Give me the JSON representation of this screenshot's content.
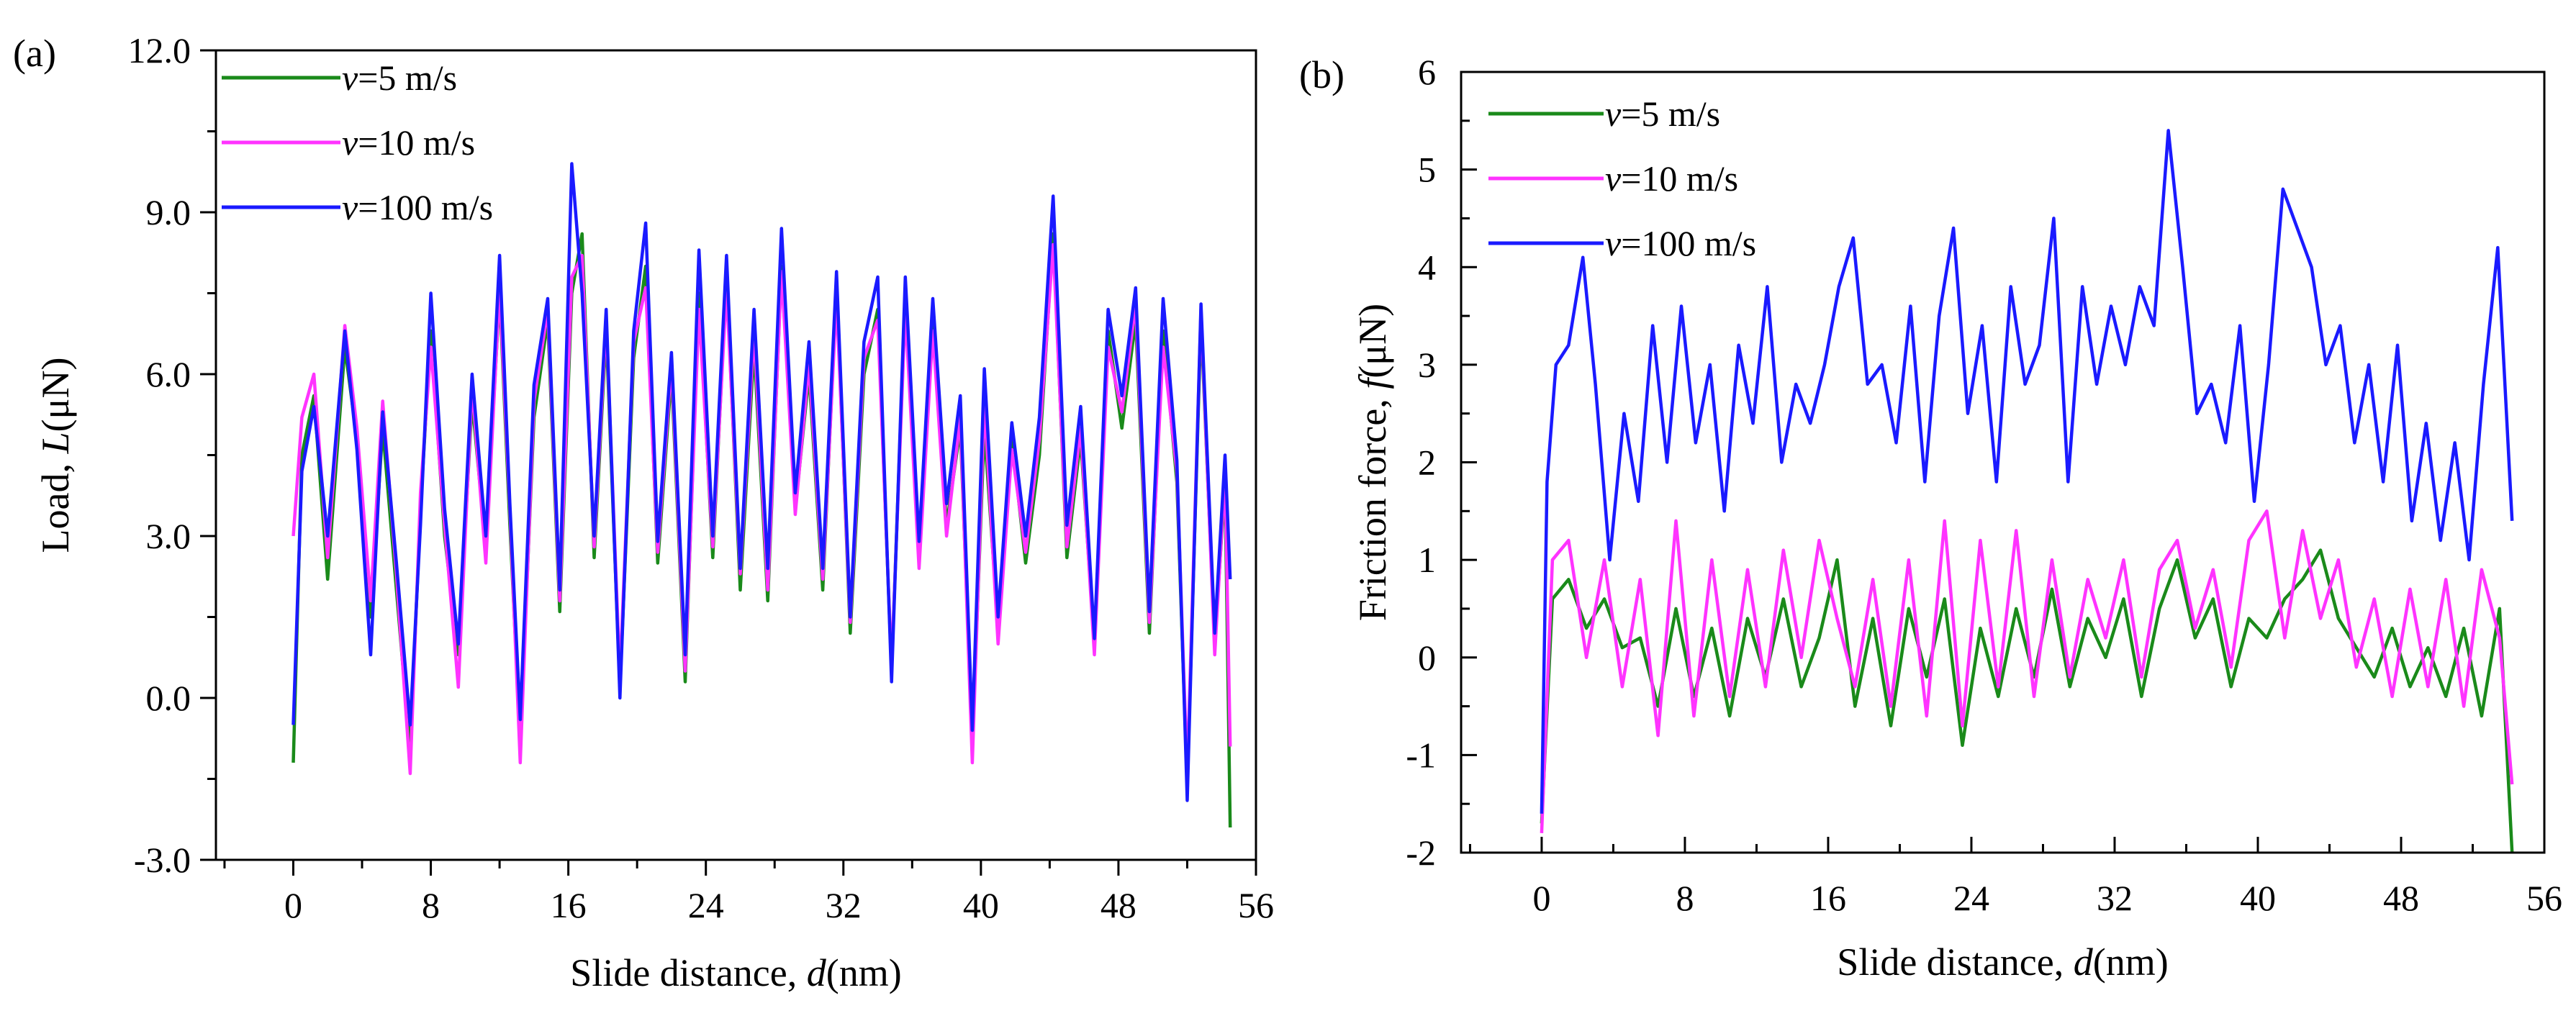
{
  "chart_data": [
    {
      "panel_label": "(a)",
      "type": "line",
      "xlabel_main": "Slide distance, ",
      "xlabel_var": "d",
      "xlabel_unit": "(nm)",
      "ylabel_main": "Load, ",
      "ylabel_var": "L",
      "ylabel_unit": "(μN)",
      "xlim": [
        -4.5,
        56
      ],
      "ylim": [
        -3,
        12
      ],
      "x_ticks": [
        0,
        8,
        16,
        24,
        32,
        40,
        48,
        56
      ],
      "x_tick_labels": [
        "0",
        "8",
        "16",
        "24",
        "32",
        "40",
        "48",
        "56"
      ],
      "y_ticks": [
        -3,
        0,
        3,
        6,
        9,
        12
      ],
      "y_tick_labels": [
        "-3.0",
        "0.0",
        "3.0",
        "6.0",
        "9.0",
        "12.0"
      ],
      "legend_position": "top-left",
      "series": [
        {
          "name_var": "v",
          "name_rest": "=5 m/s",
          "color": "#1a8a1a",
          "x": [
            0,
            0.5,
            1.2,
            2,
            3,
            3.7,
            4.5,
            5.2,
            6,
            6.8,
            7.4,
            8,
            8.8,
            9.6,
            10.4,
            11.2,
            12,
            12.6,
            13.2,
            14,
            14.8,
            15.5,
            16.2,
            16.8,
            17.5,
            18.2,
            19,
            19.8,
            20.5,
            21.2,
            22,
            22.8,
            23.6,
            24.4,
            25.2,
            26,
            26.8,
            27.6,
            28.4,
            29.2,
            30,
            30.8,
            31.6,
            32.4,
            33.2,
            34,
            34.8,
            35.6,
            36.4,
            37.2,
            38,
            38.8,
            39.5,
            40.2,
            41,
            41.8,
            42.6,
            43.4,
            44.2,
            45,
            45.8,
            46.6,
            47.4,
            48.2,
            49,
            49.8,
            50.6,
            51.4,
            52,
            52.8,
            53.6,
            54.2,
            54.5
          ],
          "y": [
            -1.2,
            4.5,
            5.6,
            2.2,
            6.5,
            4.8,
            1.5,
            5.0,
            2.0,
            -1.0,
            3.5,
            6.8,
            3.0,
            0.8,
            5.5,
            2.8,
            7.5,
            3.2,
            -0.8,
            5.2,
            7.0,
            1.6,
            7.5,
            8.6,
            2.6,
            6.8,
            0.2,
            6.3,
            8.0,
            2.5,
            6.0,
            0.3,
            7.5,
            2.6,
            7.8,
            2.0,
            6.5,
            1.8,
            8.0,
            3.5,
            6.0,
            2.0,
            7.6,
            1.2,
            6.0,
            7.2,
            0.5,
            7.5,
            2.6,
            7.0,
            3.2,
            5.0,
            -0.8,
            5.0,
            1.3,
            4.8,
            2.5,
            4.5,
            8.6,
            2.6,
            4.8,
            1.0,
            6.8,
            5.0,
            7.0,
            1.2,
            6.8,
            4.0,
            -1.6,
            7.0,
            1.0,
            4.0,
            -2.4
          ]
        },
        {
          "name_var": "v",
          "name_rest": "=10 m/s",
          "color": "#ff33ff",
          "x": [
            0,
            0.5,
            1.2,
            2,
            3,
            3.7,
            4.5,
            5.2,
            6,
            6.8,
            7.4,
            8,
            8.8,
            9.6,
            10.4,
            11.2,
            12,
            12.6,
            13.2,
            14,
            14.8,
            15.5,
            16.2,
            16.8,
            17.5,
            18.2,
            19,
            19.8,
            20.5,
            21.2,
            22,
            22.8,
            23.6,
            24.4,
            25.2,
            26,
            26.8,
            27.6,
            28.4,
            29.2,
            30,
            30.8,
            31.6,
            32.4,
            33.2,
            34,
            34.8,
            35.6,
            36.4,
            37.2,
            38,
            38.8,
            39.5,
            40.2,
            41,
            41.8,
            42.6,
            43.4,
            44.2,
            45,
            45.8,
            46.6,
            47.4,
            48.2,
            49,
            49.8,
            50.6,
            51.4,
            52,
            52.8,
            53.6,
            54.2,
            54.5
          ],
          "y": [
            3.0,
            5.2,
            6.0,
            2.6,
            6.9,
            5.0,
            1.8,
            5.5,
            2.3,
            -1.4,
            3.8,
            6.5,
            3.2,
            0.2,
            5.8,
            2.5,
            7.6,
            3.5,
            -1.2,
            5.5,
            7.2,
            1.8,
            7.8,
            8.2,
            2.8,
            7.0,
            0.4,
            6.6,
            7.6,
            2.7,
            6.2,
            0.5,
            7.2,
            2.8,
            7.6,
            2.3,
            6.8,
            2.0,
            7.9,
            3.4,
            6.2,
            2.2,
            7.4,
            1.4,
            6.3,
            7.0,
            0.6,
            7.2,
            2.4,
            6.8,
            3.0,
            5.2,
            -1.2,
            5.5,
            1.0,
            4.6,
            2.7,
            4.8,
            8.4,
            2.8,
            5.0,
            0.8,
            6.5,
            5.3,
            7.3,
            1.4,
            6.5,
            4.2,
            -1.4,
            7.2,
            0.8,
            4.2,
            -0.9
          ]
        },
        {
          "name_var": "v",
          "name_rest": "=100 m/s",
          "color": "#1a1aff",
          "x": [
            0,
            0.5,
            1.2,
            2,
            3,
            3.7,
            4.5,
            5.2,
            6,
            6.8,
            7.4,
            8,
            8.8,
            9.6,
            10.4,
            11.2,
            12,
            12.6,
            13.2,
            14,
            14.8,
            15.5,
            16.2,
            16.8,
            17.5,
            18.2,
            19,
            19.8,
            20.5,
            21.2,
            22,
            22.8,
            23.6,
            24.4,
            25.2,
            26,
            26.8,
            27.6,
            28.4,
            29.2,
            30,
            30.8,
            31.6,
            32.4,
            33.2,
            34,
            34.8,
            35.6,
            36.4,
            37.2,
            38,
            38.8,
            39.5,
            40.2,
            41,
            41.8,
            42.6,
            43.4,
            44.2,
            45,
            45.8,
            46.6,
            47.4,
            48.2,
            49,
            49.8,
            50.6,
            51.4,
            52,
            52.8,
            53.6,
            54.2,
            54.5
          ],
          "y": [
            -0.5,
            4.2,
            5.4,
            3.0,
            6.8,
            4.6,
            0.8,
            5.3,
            2.5,
            -0.5,
            3.2,
            7.5,
            3.5,
            1.0,
            6.0,
            3.0,
            8.2,
            3.6,
            -0.4,
            5.8,
            7.4,
            2.0,
            9.9,
            7.5,
            3.0,
            7.2,
            0.0,
            6.8,
            8.8,
            2.9,
            6.4,
            0.8,
            8.3,
            3.0,
            8.2,
            2.4,
            7.2,
            2.4,
            8.7,
            3.8,
            6.6,
            2.4,
            7.9,
            1.5,
            6.6,
            7.8,
            0.3,
            7.8,
            2.9,
            7.4,
            3.6,
            5.6,
            -0.6,
            6.1,
            1.5,
            5.1,
            3.0,
            5.2,
            9.3,
            3.2,
            5.4,
            1.1,
            7.2,
            5.6,
            7.6,
            1.6,
            7.4,
            4.4,
            -1.9,
            7.3,
            1.2,
            4.5,
            2.2
          ]
        }
      ]
    },
    {
      "panel_label": "(b)",
      "type": "line",
      "xlabel_main": "Slide distance, ",
      "xlabel_var": "d",
      "xlabel_unit": "(nm)",
      "ylabel_main": "Friction force, ",
      "ylabel_var": "f",
      "ylabel_unit": "(μN)",
      "xlim": [
        -4.5,
        56
      ],
      "ylim": [
        -2,
        6
      ],
      "x_ticks": [
        0,
        8,
        16,
        24,
        32,
        40,
        48,
        56
      ],
      "x_tick_labels": [
        "0",
        "8",
        "16",
        "24",
        "32",
        "40",
        "48",
        "56"
      ],
      "y_ticks": [
        -2,
        -1,
        0,
        1,
        2,
        3,
        4,
        5,
        6
      ],
      "y_tick_labels": [
        "-2",
        "-1",
        "0",
        "1",
        "2",
        "3",
        "4",
        "5",
        "6"
      ],
      "legend_position": "top-left",
      "series": [
        {
          "name_var": "v",
          "name_rest": "=5 m/s",
          "color": "#1a8a1a",
          "x": [
            0,
            0.6,
            1.5,
            2.5,
            3.5,
            4.5,
            5.5,
            6.5,
            7.5,
            8.5,
            9.5,
            10.5,
            11.5,
            12.5,
            13.5,
            14.5,
            15.5,
            16.5,
            17.5,
            18.5,
            19.5,
            20.5,
            21.5,
            22.5,
            23.5,
            24.5,
            25.5,
            26.5,
            27.5,
            28.5,
            29.5,
            30.5,
            31.5,
            32.5,
            33.5,
            34.5,
            35.5,
            36.5,
            37.5,
            38.5,
            39.5,
            40.5,
            41.5,
            42.5,
            43.5,
            44.5,
            45.5,
            46.5,
            47.5,
            48.5,
            49.5,
            50.5,
            51.5,
            52.5,
            53.5,
            54.2
          ],
          "y": [
            -1.7,
            0.6,
            0.8,
            0.3,
            0.6,
            0.1,
            0.2,
            -0.5,
            0.5,
            -0.4,
            0.3,
            -0.6,
            0.4,
            -0.2,
            0.6,
            -0.3,
            0.2,
            1.0,
            -0.5,
            0.4,
            -0.7,
            0.5,
            -0.2,
            0.6,
            -0.9,
            0.3,
            -0.4,
            0.5,
            -0.2,
            0.7,
            -0.3,
            0.4,
            0.0,
            0.6,
            -0.4,
            0.5,
            1.0,
            0.2,
            0.6,
            -0.3,
            0.4,
            0.2,
            0.6,
            0.8,
            1.1,
            0.4,
            0.1,
            -0.2,
            0.3,
            -0.3,
            0.1,
            -0.4,
            0.3,
            -0.6,
            0.5,
            -2.0
          ]
        },
        {
          "name_var": "v",
          "name_rest": "=10 m/s",
          "color": "#ff33ff",
          "x": [
            0,
            0.6,
            1.5,
            2.5,
            3.5,
            4.5,
            5.5,
            6.5,
            7.5,
            8.5,
            9.5,
            10.5,
            11.5,
            12.5,
            13.5,
            14.5,
            15.5,
            16.5,
            17.5,
            18.5,
            19.5,
            20.5,
            21.5,
            22.5,
            23.5,
            24.5,
            25.5,
            26.5,
            27.5,
            28.5,
            29.5,
            30.5,
            31.5,
            32.5,
            33.5,
            34.5,
            35.5,
            36.5,
            37.5,
            38.5,
            39.5,
            40.5,
            41.5,
            42.5,
            43.5,
            44.5,
            45.5,
            46.5,
            47.5,
            48.5,
            49.5,
            50.5,
            51.5,
            52.5,
            53.5,
            54.2
          ],
          "y": [
            -1.8,
            1.0,
            1.2,
            0.0,
            1.0,
            -0.3,
            0.8,
            -0.8,
            1.4,
            -0.6,
            1.0,
            -0.4,
            0.9,
            -0.3,
            1.1,
            0.0,
            1.2,
            0.4,
            -0.3,
            0.8,
            -0.5,
            1.0,
            -0.6,
            1.4,
            -0.7,
            1.2,
            -0.3,
            1.3,
            -0.4,
            1.0,
            -0.2,
            0.8,
            0.2,
            1.0,
            -0.2,
            0.9,
            1.2,
            0.3,
            0.9,
            -0.1,
            1.2,
            1.5,
            0.2,
            1.3,
            0.4,
            1.0,
            -0.1,
            0.6,
            -0.4,
            0.7,
            -0.3,
            0.8,
            -0.5,
            0.9,
            0.2,
            -1.3
          ]
        },
        {
          "name_var": "v",
          "name_rest": "=100 m/s",
          "color": "#1a1aff",
          "x": [
            0,
            0.3,
            0.8,
            1.5,
            2.3,
            3,
            3.8,
            4.6,
            5.4,
            6.2,
            7,
            7.8,
            8.6,
            9.4,
            10.2,
            11,
            11.8,
            12.6,
            13.4,
            14.2,
            15,
            15.8,
            16.6,
            17.4,
            18.2,
            19,
            19.8,
            20.6,
            21.4,
            22.2,
            23,
            23.8,
            24.6,
            25.4,
            26.2,
            27,
            27.8,
            28.6,
            29.4,
            30.2,
            31,
            31.8,
            32.6,
            33.4,
            34.2,
            35,
            35.8,
            36.6,
            37.4,
            38.2,
            39,
            39.8,
            40.6,
            41.4,
            42.2,
            43,
            43.8,
            44.6,
            45.4,
            46.2,
            47,
            47.8,
            48.6,
            49.4,
            50.2,
            51,
            51.8,
            52.6,
            53.4,
            54.2
          ],
          "y": [
            -1.6,
            1.8,
            3.0,
            3.2,
            4.1,
            2.8,
            1.0,
            2.5,
            1.6,
            3.4,
            2.0,
            3.6,
            2.2,
            3.0,
            1.5,
            3.2,
            2.4,
            3.8,
            2.0,
            2.8,
            2.4,
            3.0,
            3.8,
            4.3,
            2.8,
            3.0,
            2.2,
            3.6,
            1.8,
            3.5,
            4.4,
            2.5,
            3.4,
            1.8,
            3.8,
            2.8,
            3.2,
            4.5,
            1.8,
            3.8,
            2.8,
            3.6,
            3.0,
            3.8,
            3.4,
            5.4,
            4.0,
            2.5,
            2.8,
            2.2,
            3.4,
            1.6,
            3.0,
            4.8,
            4.4,
            4.0,
            3.0,
            3.4,
            2.2,
            3.0,
            1.8,
            3.2,
            1.4,
            2.4,
            1.2,
            2.2,
            1.0,
            2.8,
            4.2,
            1.4
          ]
        }
      ]
    }
  ]
}
